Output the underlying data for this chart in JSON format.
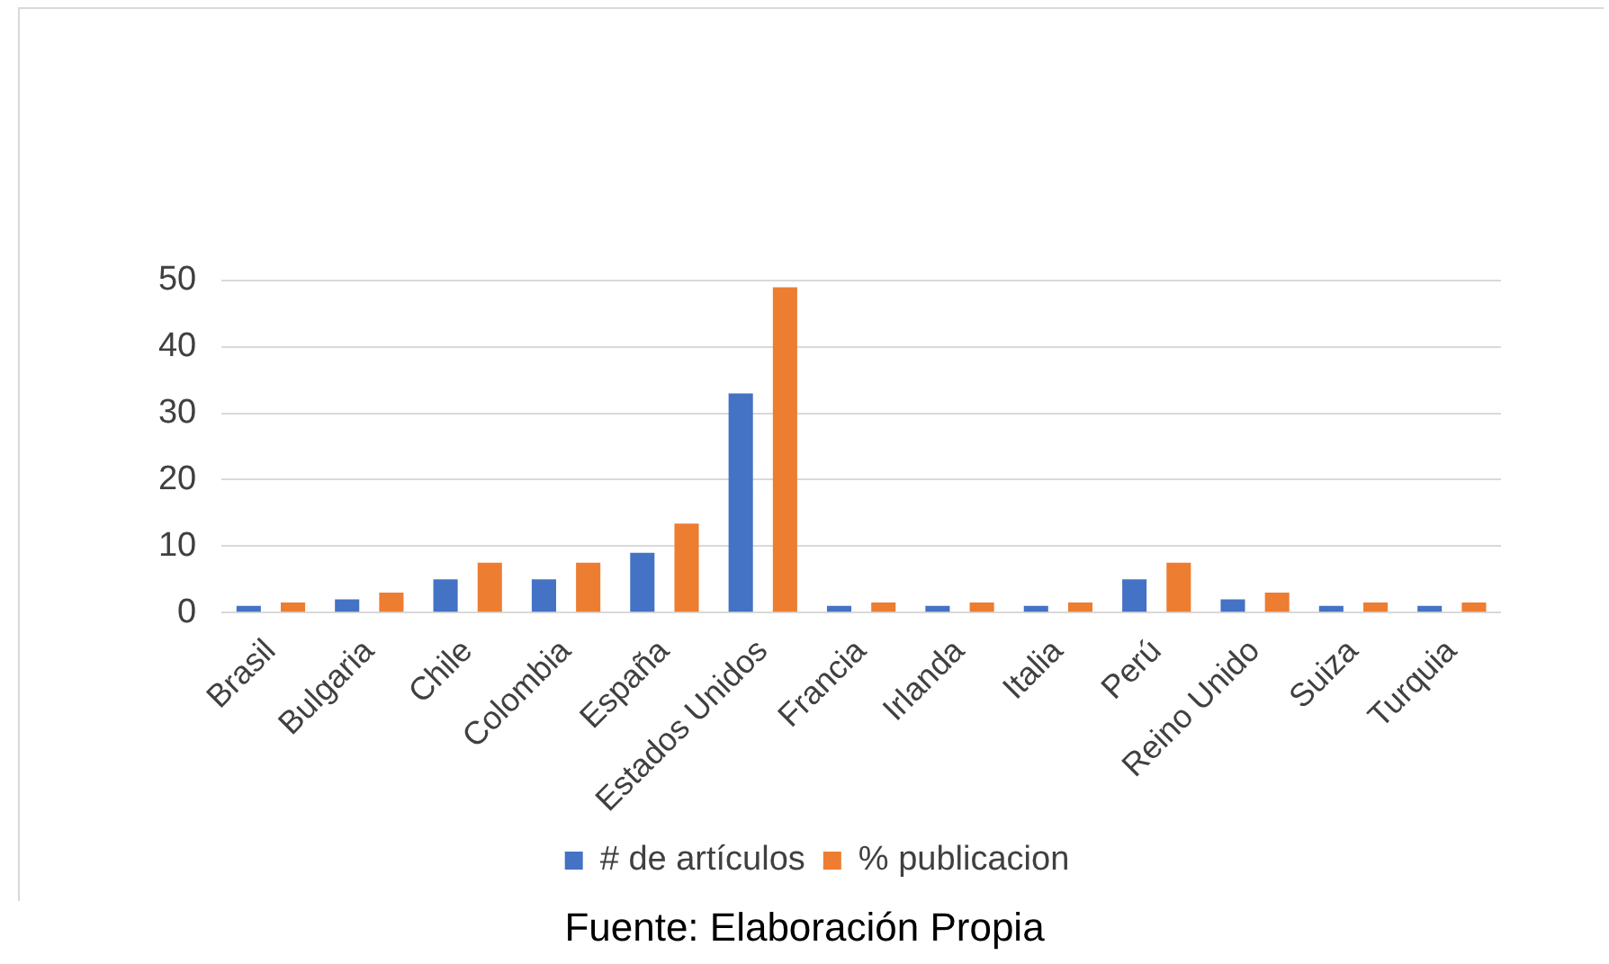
{
  "chart_data": {
    "type": "bar",
    "categories": [
      "Brasil",
      "Bulgaria",
      "Chile",
      "Colombia",
      "España",
      "Estados Unidos",
      "Francia",
      "Irlanda",
      "Italia",
      "Perú",
      "Reino Unido",
      "Suiza",
      "Turquia"
    ],
    "series": [
      {
        "name": "# de artículos",
        "color": "#4472c4",
        "values": [
          1,
          2,
          5,
          5,
          9,
          33,
          1,
          1,
          1,
          5,
          2,
          1,
          1
        ]
      },
      {
        "name": "% publicacion",
        "color": "#ed7d31",
        "values": [
          1.5,
          3,
          7.5,
          7.5,
          13.4,
          49,
          1.5,
          1.5,
          1.5,
          7.5,
          3,
          1.5,
          1.5
        ]
      }
    ],
    "ylim": [
      0,
      50
    ],
    "yticks": [
      0,
      10,
      20,
      30,
      40,
      50
    ],
    "grid": "y",
    "legend": "bottom",
    "annotations": [
      "Fuente: Elaboración Propia"
    ]
  }
}
